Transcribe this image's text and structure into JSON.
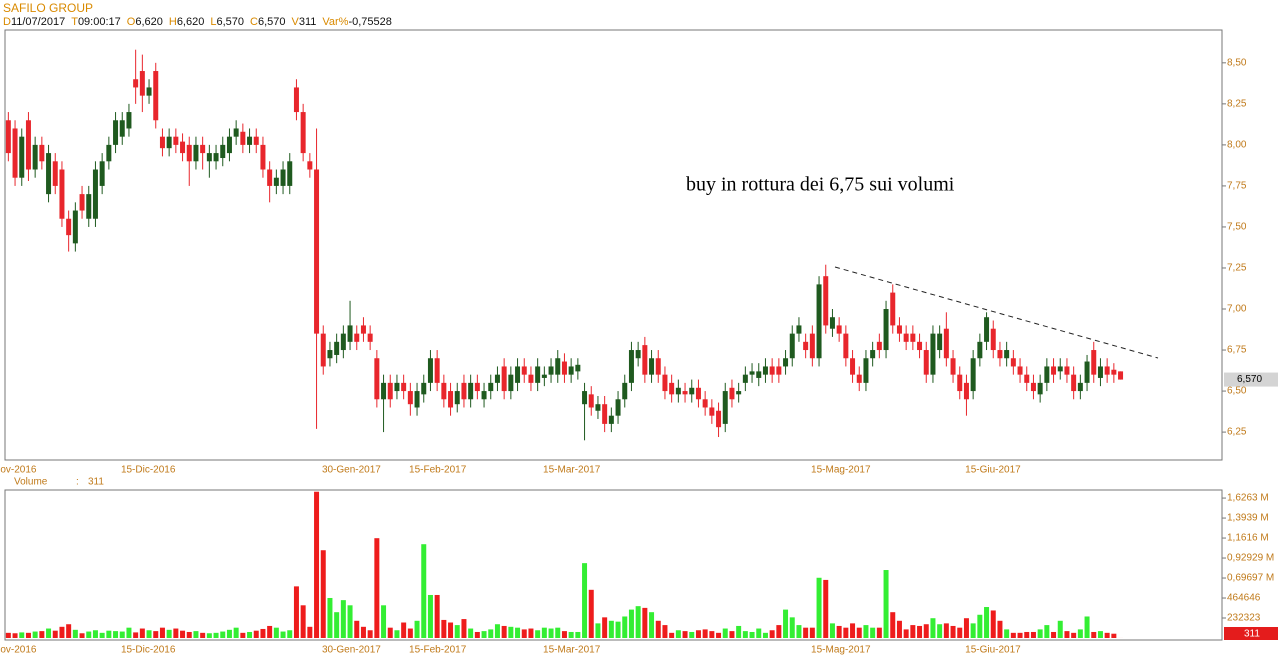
{
  "header": {
    "title": "SAFILO GROUP",
    "fields": [
      {
        "key": "D",
        "value": "11/07/2017"
      },
      {
        "key": "T",
        "value": "09:00:17"
      },
      {
        "key": "O",
        "value": "6,620"
      },
      {
        "key": "H",
        "value": "6,620"
      },
      {
        "key": "L",
        "value": "6,570"
      },
      {
        "key": "C",
        "value": "6,570"
      },
      {
        "key": "V",
        "value": "311"
      },
      {
        "key": "Var%",
        "value": "-0,75528"
      }
    ]
  },
  "chart_data": [
    {
      "type": "candlestick",
      "annotation": "buy in rottura dei 6,75 sui volumi",
      "last_label": "6,570",
      "up_color": "#1f5a1f",
      "down_color": "#e8262c",
      "ylim": [
        6.08,
        8.7
      ],
      "yticks": [
        {
          "value": 8.5,
          "label": "8,50"
        },
        {
          "value": 8.25,
          "label": "8,25"
        },
        {
          "value": 8.0,
          "label": "8,00"
        },
        {
          "value": 7.75,
          "label": "7,75"
        },
        {
          "value": 7.5,
          "label": "7,50"
        },
        {
          "value": 7.25,
          "label": "7,25"
        },
        {
          "value": 7.0,
          "label": "7,00"
        },
        {
          "value": 6.75,
          "label": "6,75"
        },
        {
          "value": 6.5,
          "label": "6,50"
        },
        {
          "value": 6.25,
          "label": "6,25"
        }
      ],
      "categories": [
        "ov-2016",
        null,
        null,
        null,
        null,
        null,
        null,
        null,
        null,
        null,
        null,
        null,
        null,
        null,
        null,
        null,
        null,
        null,
        "15-Dic-2016",
        null,
        null,
        null,
        null,
        null,
        null,
        null,
        null,
        null,
        null,
        null,
        null,
        null,
        null,
        null,
        null,
        null,
        null,
        null,
        null,
        null,
        null,
        null,
        null,
        null,
        null,
        null,
        null,
        null,
        "30-Gen-2017",
        null,
        null,
        null,
        null,
        null,
        null,
        null,
        null,
        null,
        null,
        null,
        null,
        "15-Feb-2017",
        null,
        null,
        null,
        null,
        null,
        null,
        null,
        null,
        null,
        null,
        null,
        null,
        null,
        null,
        null,
        null,
        null,
        null,
        null,
        "15-Mar-2017",
        null,
        null,
        null,
        null,
        null,
        null,
        null,
        null,
        null,
        null,
        null,
        null,
        null,
        null,
        null,
        null,
        null,
        null,
        null,
        null,
        null,
        null,
        null,
        null,
        null,
        null,
        null,
        null,
        null,
        null,
        null,
        null,
        null,
        null,
        null,
        null,
        null,
        null,
        null,
        "15-Mag-2017",
        null,
        null,
        null,
        null,
        null,
        null,
        null,
        null,
        null,
        null,
        null,
        null,
        null,
        null,
        null,
        null,
        null,
        null,
        null,
        null,
        null,
        null,
        "15-Giu-2017",
        null,
        null,
        null,
        null,
        null,
        null,
        null,
        null,
        null,
        null,
        null,
        null,
        null,
        null,
        null,
        null,
        null,
        null,
        null,
        null,
        null,
        null
      ],
      "open": [
        8.15,
        8.1,
        7.8,
        8.15,
        7.85,
        8.0,
        7.7,
        7.9,
        7.85,
        7.55,
        7.4,
        7.7,
        7.55,
        7.55,
        7.75,
        7.9,
        8.0,
        8.05,
        8.1,
        8.4,
        8.45,
        8.3,
        8.45,
        8.05,
        7.98,
        8.05,
        8.02,
        8.0,
        7.9,
        8.0,
        7.9,
        7.9,
        7.92,
        7.95,
        8.05,
        8.08,
        8.0,
        8.05,
        8.0,
        7.85,
        7.75,
        7.75,
        7.75,
        8.35,
        8.2,
        7.9,
        7.85,
        6.85,
        6.7,
        6.72,
        6.75,
        6.8,
        6.85,
        6.9,
        6.85,
        6.7,
        6.45,
        6.55,
        6.5,
        6.55,
        6.5,
        6.4,
        6.48,
        6.55,
        6.7,
        6.55,
        6.5,
        6.42,
        6.55,
        6.45,
        6.55,
        6.45,
        6.5,
        6.55,
        6.65,
        6.5,
        6.55,
        6.65,
        6.6,
        6.55,
        6.58,
        6.6,
        6.6,
        6.68,
        6.6,
        6.62,
        6.42,
        6.48,
        6.38,
        6.42,
        6.3,
        6.35,
        6.45,
        6.55,
        6.7,
        6.78,
        6.6,
        6.7,
        6.6,
        6.55,
        6.48,
        6.5,
        6.48,
        6.52,
        6.45,
        6.4,
        6.38,
        6.3,
        6.52,
        6.48,
        6.55,
        6.6,
        6.58,
        6.6,
        6.65,
        6.65,
        6.65,
        6.7,
        6.85,
        6.8,
        6.85,
        6.7,
        7.2,
        6.88,
        6.9,
        6.85,
        6.7,
        6.6,
        6.55,
        6.7,
        6.8,
        6.75,
        7.1,
        6.9,
        6.85,
        6.85,
        6.8,
        6.75,
        6.6,
        6.75,
        6.88,
        6.7,
        6.6,
        6.55,
        6.5,
        6.7,
        6.8,
        6.88,
        6.75,
        6.7,
        6.7,
        6.65,
        6.6,
        6.55,
        6.48,
        6.55,
        6.65,
        6.62,
        6.65,
        6.6,
        6.5,
        6.55,
        6.75,
        6.58,
        6.65,
        6.63,
        6.62
      ],
      "high": [
        8.2,
        8.15,
        8.1,
        8.2,
        8.05,
        8.05,
        8.0,
        7.95,
        7.9,
        7.6,
        7.65,
        7.75,
        7.75,
        7.9,
        7.95,
        8.05,
        8.2,
        8.2,
        8.25,
        8.58,
        8.55,
        8.4,
        8.5,
        8.1,
        8.1,
        8.1,
        8.07,
        8.05,
        8.05,
        8.05,
        8.0,
        8.0,
        8.05,
        8.1,
        8.15,
        8.13,
        8.1,
        8.1,
        8.05,
        7.9,
        7.85,
        7.9,
        7.95,
        8.4,
        8.25,
        7.95,
        8.1,
        6.9,
        6.8,
        6.85,
        6.9,
        7.05,
        6.9,
        6.95,
        6.9,
        6.75,
        6.6,
        6.6,
        6.6,
        6.6,
        6.55,
        6.55,
        6.6,
        6.75,
        6.75,
        6.6,
        6.55,
        6.55,
        6.6,
        6.6,
        6.6,
        6.55,
        6.6,
        6.65,
        6.7,
        6.65,
        6.7,
        6.7,
        6.65,
        6.7,
        6.65,
        6.7,
        6.75,
        6.73,
        6.7,
        6.7,
        6.55,
        6.53,
        6.47,
        6.47,
        6.4,
        6.5,
        6.6,
        6.8,
        6.8,
        6.83,
        6.75,
        6.75,
        6.65,
        6.6,
        6.57,
        6.55,
        6.57,
        6.57,
        6.5,
        6.45,
        6.43,
        6.55,
        6.57,
        6.55,
        6.65,
        6.67,
        6.67,
        6.7,
        6.7,
        6.7,
        6.75,
        6.9,
        6.95,
        6.85,
        6.9,
        7.2,
        7.27,
        7.0,
        6.95,
        6.9,
        6.75,
        6.65,
        6.75,
        6.8,
        6.85,
        7.05,
        7.15,
        6.95,
        6.9,
        6.9,
        6.85,
        6.8,
        6.9,
        6.9,
        6.98,
        6.75,
        6.65,
        6.6,
        6.75,
        6.85,
        6.98,
        6.93,
        6.8,
        6.8,
        6.75,
        6.7,
        6.65,
        6.6,
        6.6,
        6.7,
        6.7,
        6.7,
        6.7,
        6.65,
        6.6,
        6.72,
        6.8,
        6.7,
        6.7,
        6.67,
        6.62
      ],
      "low": [
        7.9,
        7.75,
        7.75,
        7.78,
        7.8,
        7.85,
        7.65,
        7.7,
        7.5,
        7.35,
        7.35,
        7.55,
        7.5,
        7.5,
        7.7,
        7.85,
        7.95,
        8.0,
        8.05,
        8.25,
        8.2,
        8.25,
        8.1,
        7.93,
        7.93,
        7.95,
        7.9,
        7.75,
        7.85,
        7.85,
        7.8,
        7.85,
        7.87,
        7.9,
        8.0,
        7.95,
        7.95,
        7.95,
        7.8,
        7.65,
        7.7,
        7.7,
        7.7,
        8.15,
        7.9,
        7.8,
        6.27,
        6.6,
        6.65,
        6.67,
        6.7,
        6.75,
        6.75,
        6.8,
        6.75,
        6.4,
        6.25,
        6.4,
        6.45,
        6.45,
        6.35,
        6.35,
        6.43,
        6.5,
        6.5,
        6.4,
        6.35,
        6.37,
        6.4,
        6.4,
        6.45,
        6.4,
        6.45,
        6.5,
        6.45,
        6.45,
        6.5,
        6.55,
        6.5,
        6.5,
        6.53,
        6.55,
        6.55,
        6.55,
        6.55,
        6.57,
        6.2,
        6.35,
        6.33,
        6.25,
        6.25,
        6.3,
        6.4,
        6.5,
        6.65,
        6.55,
        6.55,
        6.55,
        6.45,
        6.43,
        6.43,
        6.43,
        6.43,
        6.4,
        6.35,
        6.3,
        6.22,
        6.25,
        6.4,
        6.43,
        6.5,
        6.55,
        6.53,
        6.55,
        6.55,
        6.55,
        6.6,
        6.65,
        6.8,
        6.7,
        6.65,
        6.65,
        6.85,
        6.83,
        6.8,
        6.65,
        6.55,
        6.5,
        6.5,
        6.65,
        6.7,
        6.7,
        6.85,
        6.8,
        6.75,
        6.75,
        6.7,
        6.55,
        6.55,
        6.7,
        6.65,
        6.55,
        6.45,
        6.35,
        6.45,
        6.65,
        6.75,
        6.7,
        6.65,
        6.65,
        6.6,
        6.55,
        6.5,
        6.45,
        6.43,
        6.5,
        6.55,
        6.57,
        6.55,
        6.45,
        6.45,
        6.5,
        6.55,
        6.53,
        6.55,
        6.55,
        6.57
      ],
      "close": [
        7.95,
        7.8,
        8.05,
        7.85,
        8.0,
        7.9,
        7.95,
        7.75,
        7.55,
        7.45,
        7.6,
        7.6,
        7.7,
        7.85,
        7.9,
        8.0,
        8.15,
        8.15,
        8.2,
        8.35,
        8.3,
        8.35,
        8.15,
        7.98,
        8.05,
        8.0,
        7.95,
        7.9,
        8.0,
        7.95,
        7.95,
        7.95,
        8.0,
        8.05,
        8.1,
        8.0,
        8.05,
        8.0,
        7.85,
        7.75,
        7.8,
        7.85,
        7.9,
        8.2,
        7.95,
        7.85,
        6.85,
        6.65,
        6.75,
        6.8,
        6.85,
        6.9,
        6.8,
        6.85,
        6.8,
        6.45,
        6.55,
        6.45,
        6.55,
        6.5,
        6.42,
        6.5,
        6.55,
        6.7,
        6.55,
        6.45,
        6.4,
        6.5,
        6.45,
        6.55,
        6.5,
        6.5,
        6.55,
        6.6,
        6.5,
        6.6,
        6.65,
        6.6,
        6.55,
        6.65,
        6.6,
        6.65,
        6.7,
        6.6,
        6.65,
        6.66,
        6.5,
        6.4,
        6.42,
        6.3,
        6.35,
        6.45,
        6.55,
        6.75,
        6.75,
        6.6,
        6.7,
        6.6,
        6.5,
        6.48,
        6.52,
        6.48,
        6.52,
        6.45,
        6.4,
        6.35,
        6.28,
        6.5,
        6.45,
        6.5,
        6.6,
        6.62,
        6.62,
        6.65,
        6.6,
        6.6,
        6.7,
        6.85,
        6.9,
        6.75,
        6.7,
        7.15,
        6.9,
        6.95,
        6.85,
        6.7,
        6.6,
        6.55,
        6.7,
        6.75,
        6.75,
        7.0,
        6.9,
        6.85,
        6.8,
        6.8,
        6.75,
        6.6,
        6.85,
        6.85,
        6.7,
        6.6,
        6.5,
        6.45,
        6.7,
        6.8,
        6.95,
        6.75,
        6.7,
        6.75,
        6.65,
        6.6,
        6.55,
        6.5,
        6.55,
        6.65,
        6.6,
        6.65,
        6.6,
        6.5,
        6.55,
        6.68,
        6.6,
        6.65,
        6.6,
        6.6,
        6.57
      ]
    },
    {
      "type": "bar",
      "title": "Volume",
      "label_separator": ":",
      "last_label": "311",
      "up_color": "#33ee33",
      "down_color": "#ee1c1c",
      "ylim": [
        0,
        1720000
      ],
      "yticks": [
        {
          "value": 1626300,
          "label": "1,6263 M"
        },
        {
          "value": 1393900,
          "label": "1,3939 M"
        },
        {
          "value": 1161600,
          "label": "1,1616 M"
        },
        {
          "value": 929290,
          "label": "0,92929 M"
        },
        {
          "value": 696970,
          "label": "0,69697 M"
        },
        464646,
        232323
      ],
      "categories": [
        "ov-2016",
        null,
        null,
        null,
        null,
        null,
        null,
        null,
        null,
        null,
        null,
        null,
        null,
        null,
        null,
        null,
        null,
        null,
        "15-Dic-2016",
        null,
        null,
        null,
        null,
        null,
        null,
        null,
        null,
        null,
        null,
        null,
        null,
        null,
        null,
        null,
        null,
        null,
        null,
        null,
        null,
        null,
        null,
        null,
        null,
        null,
        null,
        null,
        null,
        null,
        "30-Gen-2017",
        null,
        null,
        null,
        null,
        null,
        null,
        null,
        null,
        null,
        null,
        null,
        null,
        "15-Feb-2017",
        null,
        null,
        null,
        null,
        null,
        null,
        null,
        null,
        null,
        null,
        null,
        null,
        null,
        null,
        null,
        null,
        null,
        null,
        null,
        "15-Mar-2017",
        null,
        null,
        null,
        null,
        null,
        null,
        null,
        null,
        null,
        null,
        null,
        null,
        null,
        null,
        null,
        null,
        null,
        null,
        null,
        null,
        null,
        null,
        null,
        null,
        null,
        null,
        null,
        null,
        null,
        null,
        null,
        null,
        null,
        null,
        null,
        null,
        null,
        null,
        null,
        "15-Mag-2017",
        null,
        null,
        null,
        null,
        null,
        null,
        null,
        null,
        null,
        null,
        null,
        null,
        null,
        null,
        null,
        null,
        null,
        null,
        null,
        null,
        null,
        null,
        "15-Giu-2017",
        null,
        null,
        null,
        null,
        null,
        null,
        null,
        null,
        null,
        null,
        null,
        null,
        null,
        null,
        null,
        null,
        null,
        null,
        null,
        null,
        null,
        null
      ],
      "values": [
        60000,
        55000,
        65000,
        60000,
        75000,
        80000,
        110000,
        85000,
        130000,
        160000,
        95000,
        55000,
        75000,
        90000,
        60000,
        85000,
        80000,
        75000,
        120000,
        65000,
        110000,
        90000,
        80000,
        120000,
        95000,
        110000,
        85000,
        70000,
        80000,
        60000,
        55000,
        60000,
        75000,
        95000,
        120000,
        60000,
        70000,
        85000,
        105000,
        140000,
        120000,
        75000,
        90000,
        600000,
        380000,
        130000,
        1700000,
        1020000,
        465000,
        300000,
        440000,
        380000,
        200000,
        130000,
        90000,
        1160000,
        380000,
        120000,
        90000,
        180000,
        110000,
        200000,
        1090000,
        500000,
        500000,
        210000,
        180000,
        150000,
        220000,
        110000,
        70000,
        80000,
        100000,
        160000,
        140000,
        130000,
        120000,
        100000,
        110000,
        90000,
        120000,
        110000,
        120000,
        80000,
        70000,
        70000,
        870000,
        560000,
        170000,
        240000,
        200000,
        190000,
        250000,
        330000,
        370000,
        350000,
        300000,
        200000,
        150000,
        60000,
        90000,
        80000,
        70000,
        90000,
        100000,
        80000,
        60000,
        110000,
        80000,
        140000,
        80000,
        70000,
        110000,
        60000,
        90000,
        150000,
        330000,
        240000,
        150000,
        120000,
        120000,
        700000,
        675000,
        170000,
        140000,
        120000,
        170000,
        120000,
        150000,
        120000,
        120000,
        790000,
        300000,
        200000,
        100000,
        150000,
        140000,
        160000,
        230000,
        160000,
        170000,
        140000,
        120000,
        230000,
        170000,
        270000,
        360000,
        320000,
        200000,
        100000,
        60000,
        60000,
        70000,
        70000,
        100000,
        150000,
        70000,
        200000,
        80000,
        60000,
        100000,
        250000,
        70000,
        80000,
        60000,
        50000,
        311
      ]
    }
  ]
}
